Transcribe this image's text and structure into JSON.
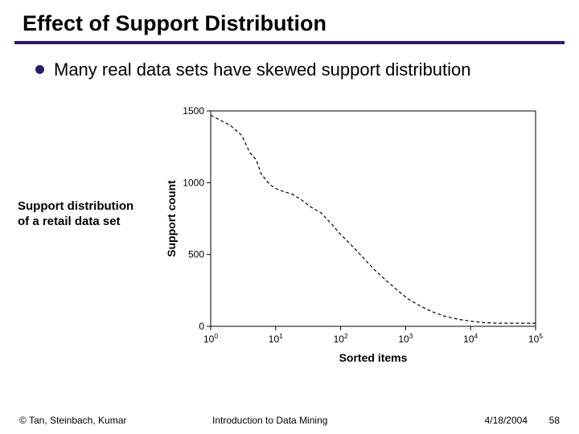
{
  "title": "Effect of Support Distribution",
  "title_color": "#000000",
  "underline_color": "#2d1a6a",
  "bullet": {
    "text": "Many real data sets have skewed support distribution",
    "dot_color": "#2d1a6a"
  },
  "caption": "Support distribution of a retail data set",
  "chart": {
    "type": "line",
    "xlabel": "Sorted items",
    "ylabel": "Support count",
    "x_scale": "log",
    "xlim": [
      1,
      100000
    ],
    "ylim": [
      0,
      1500
    ],
    "yticks": [
      0,
      500,
      1000,
      1500
    ],
    "xticks_pow10": [
      0,
      1,
      2,
      3,
      4,
      5
    ],
    "line_color": "#000000",
    "line_width": 1.2,
    "line_dash": "4,3",
    "background_color": "#ffffff",
    "axis_color": "#000000",
    "font_size_ticks": 12,
    "font_size_labels": 14,
    "points": [
      [
        1,
        1470
      ],
      [
        2,
        1400
      ],
      [
        3,
        1330
      ],
      [
        4,
        1210
      ],
      [
        5,
        1160
      ],
      [
        6,
        1060
      ],
      [
        8,
        990
      ],
      [
        10,
        960
      ],
      [
        13,
        940
      ],
      [
        18,
        920
      ],
      [
        25,
        880
      ],
      [
        35,
        830
      ],
      [
        50,
        790
      ],
      [
        70,
        720
      ],
      [
        100,
        640
      ],
      [
        150,
        560
      ],
      [
        220,
        480
      ],
      [
        320,
        400
      ],
      [
        500,
        320
      ],
      [
        750,
        250
      ],
      [
        1100,
        190
      ],
      [
        1700,
        140
      ],
      [
        2600,
        100
      ],
      [
        4000,
        70
      ],
      [
        6300,
        50
      ],
      [
        10000,
        36
      ],
      [
        16000,
        26
      ],
      [
        25000,
        22
      ],
      [
        40000,
        22
      ],
      [
        63000,
        22
      ],
      [
        100000,
        22
      ]
    ]
  },
  "footer": {
    "copyright": "© Tan, Steinbach, Kumar",
    "center": "Introduction to Data Mining",
    "date": "4/18/2004",
    "page": "58"
  }
}
